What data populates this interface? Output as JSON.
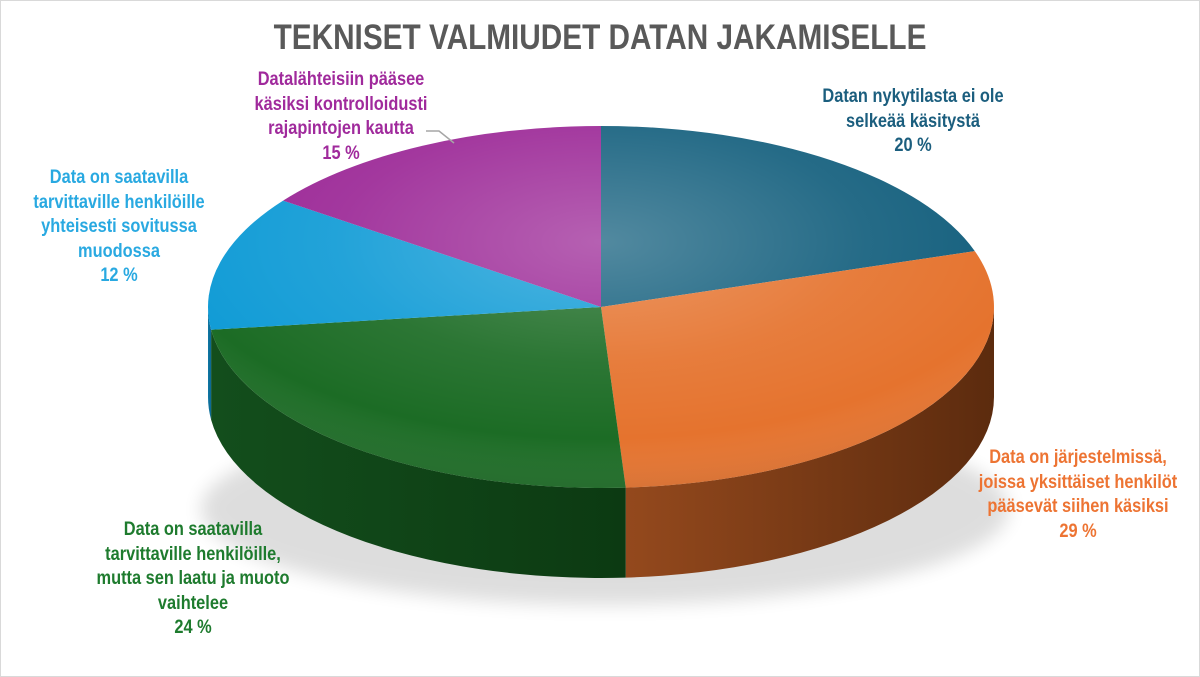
{
  "title": "TEKNISET VALMIUDET DATAN JAKAMISELLE",
  "chart_data": {
    "type": "pie",
    "style": "3d",
    "title": "TEKNISET VALMIUDET DATAN JAKAMISELLE",
    "start_angle_deg": 0,
    "direction": "clockwise",
    "labels_layout": "outside-callouts",
    "unit": "%",
    "slices": [
      {
        "id": "teal",
        "label": "Datan nykytilasta ei ole selkeää käsitystä",
        "value": 20,
        "color": "#15607E",
        "side_color_from": "#124E66",
        "side_color_to": "#0C3A4E"
      },
      {
        "id": "orange",
        "label": "Data on järjestelmissä, joissa yksittäiset henkilöt pääsevät siihen käsiksi",
        "value": 29,
        "color": "#E5732E",
        "side_color_from": "#94491D",
        "side_color_to": "#5C2B0E"
      },
      {
        "id": "green",
        "label": "Data on saatavilla tarvittaville henkilöille, mutta sen laatu ja muoto vaihtelee",
        "value": 24,
        "color": "#1C6C25",
        "side_color_from": "#134E1C",
        "side_color_to": "#0C3A12"
      },
      {
        "id": "cyan",
        "label": "Data on saatavilla tarvittaville henkilöille yhteisesti sovitussa muodossa",
        "value": 12,
        "color": "#129CD6",
        "side_color_from": "#0E76A4",
        "side_color_to": "#0C6790"
      },
      {
        "id": "purple",
        "label": "Datalähteisiin pääsee käsiksi kontrolloidusti rajapintojen kautta",
        "value": 15,
        "color": "#9C2997",
        "side_color_from": "#771F73",
        "side_color_to": "#5E185B"
      }
    ]
  },
  "labels": {
    "teal": {
      "lines": [
        "Datan nykytilasta ei ole",
        "selkeää käsitystä"
      ],
      "pct": "20 %",
      "color": "#1B5E7E"
    },
    "orange": {
      "lines": [
        "Data on järjestelmissä,",
        "joissa yksittäiset henkilöt",
        "pääsevät siihen käsiksi"
      ],
      "pct": "29 %",
      "color": "#ED7433"
    },
    "green": {
      "lines": [
        "Data on saatavilla",
        "tarvittaville henkilöille,",
        "mutta sen laatu ja muoto",
        "vaihtelee"
      ],
      "pct": "24 %",
      "color": "#1E7B2E"
    },
    "cyan": {
      "lines": [
        "Data on saatavilla",
        "tarvittaville henkilöille",
        "yhteisesti sovitussa",
        "muodossa"
      ],
      "pct": "12 %",
      "color": "#29A9E1"
    },
    "purple": {
      "lines": [
        "Datalähteisiin pääsee",
        "käsiksi kontrolloidusti",
        "rajapintojen kautta"
      ],
      "pct": "15 %",
      "color": "#A02A9C"
    }
  },
  "colors": {
    "title": "#595959",
    "leader_line": "#A6A6A6",
    "background": "#FFFFFF",
    "border": "#D9D9D9"
  }
}
